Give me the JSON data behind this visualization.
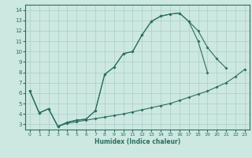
{
  "xlabel": "Humidex (Indice chaleur)",
  "background_color": "#cce8e0",
  "grid_color": "#aacfc8",
  "line_color": "#2d6e60",
  "xlim": [
    -0.5,
    23.5
  ],
  "ylim": [
    2.5,
    14.5
  ],
  "xticks": [
    0,
    1,
    2,
    3,
    4,
    5,
    6,
    7,
    8,
    9,
    10,
    11,
    12,
    13,
    14,
    15,
    16,
    17,
    18,
    19,
    20,
    21,
    22,
    23
  ],
  "yticks": [
    3,
    4,
    5,
    6,
    7,
    8,
    9,
    10,
    11,
    12,
    13,
    14
  ],
  "line1_x": [
    0,
    1,
    2,
    3,
    4,
    5,
    6,
    7,
    8,
    9,
    10,
    11,
    12,
    13,
    14,
    15,
    16,
    17,
    18,
    19,
    20,
    21
  ],
  "line1_y": [
    6.2,
    4.1,
    4.5,
    2.8,
    3.2,
    3.4,
    3.5,
    4.3,
    7.8,
    8.5,
    9.8,
    10.0,
    11.6,
    12.9,
    13.4,
    13.6,
    13.7,
    12.9,
    12.0,
    10.4,
    9.3,
    8.4
  ],
  "line2_x": [
    0,
    1,
    2,
    3,
    4,
    5,
    6,
    7,
    8,
    9,
    10,
    11,
    12,
    13,
    14,
    15,
    16,
    17,
    18,
    19
  ],
  "line2_y": [
    6.2,
    4.1,
    4.5,
    2.8,
    3.2,
    3.4,
    3.5,
    4.3,
    7.8,
    8.5,
    9.8,
    10.0,
    11.6,
    12.9,
    13.4,
    13.6,
    13.7,
    12.9,
    11.0,
    8.0
  ],
  "line3_x": [
    0,
    1,
    2,
    3,
    4,
    5,
    6,
    7,
    8,
    9,
    10,
    11,
    12,
    13,
    14,
    15,
    16,
    17,
    18,
    19,
    20,
    21,
    22,
    23
  ],
  "line3_y": [
    6.2,
    4.1,
    4.5,
    2.8,
    3.1,
    3.25,
    3.4,
    3.55,
    3.7,
    3.85,
    4.0,
    4.2,
    4.4,
    4.6,
    4.8,
    5.0,
    5.3,
    5.6,
    5.9,
    6.2,
    6.6,
    7.0,
    7.6,
    8.3
  ]
}
